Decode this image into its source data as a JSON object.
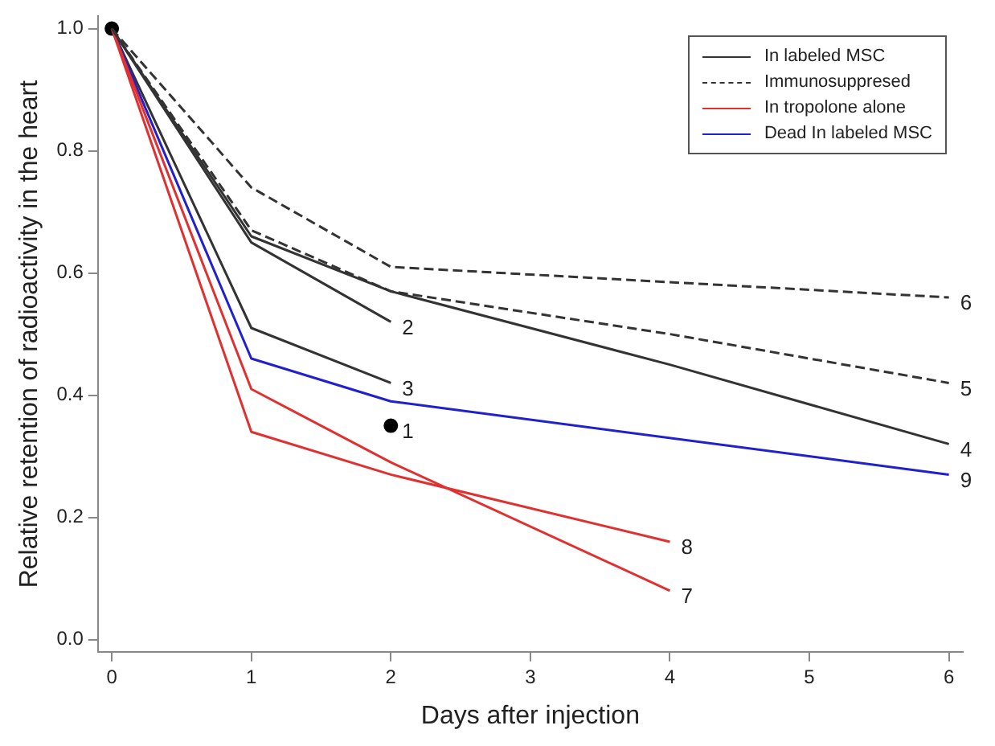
{
  "chart_data": {
    "type": "line",
    "xlabel": "Days after injection",
    "ylabel": "Relative retention of radioactivity in the heart",
    "xlim": [
      -0.1,
      6.1
    ],
    "ylim": [
      -0.02,
      1.02
    ],
    "xticks": [
      0,
      1,
      2,
      3,
      4,
      5,
      6
    ],
    "yticks": [
      {
        "value": 0,
        "label": "0.0"
      },
      {
        "value": 0.2,
        "label": "0.2"
      },
      {
        "value": 0.4,
        "label": "0.4"
      },
      {
        "value": 0.6,
        "label": "0.6"
      },
      {
        "value": 0.8,
        "label": "0.8"
      },
      {
        "value": 1,
        "label": "1.0"
      }
    ],
    "grid": false,
    "legend": "top right",
    "marker": "none",
    "series": [
      {
        "name": "In labeled MSC",
        "color": "#333333",
        "line_style": "solid",
        "x": [
          0,
          1,
          2,
          4,
          6
        ],
        "values": [
          1,
          0.66,
          0.57,
          0.45,
          0.32
        ]
      },
      {
        "name": "Immunosuppresed",
        "color": "#333333",
        "line_style": "dashed",
        "x": [
          0,
          1,
          2,
          4,
          6
        ],
        "values": [
          1,
          0.67,
          0.57,
          0.5,
          0.42
        ]
      },
      {
        "name": "In tropolone alone",
        "color": "#e03030",
        "line_style": "solid",
        "x": [
          0,
          1,
          2,
          4
        ],
        "values": [
          1,
          0.41,
          0.29,
          0.08
        ]
      },
      {
        "name": "Dead In labeled MSC",
        "color": "#2020d0",
        "line_style": "solid",
        "x": [
          0,
          1,
          2,
          6
        ],
        "values": [
          1,
          0.46,
          0.39,
          0.27
        ]
      },
      {
        "color": "#333333",
        "line_style": "solid",
        "x": [
          0,
          1,
          2
        ],
        "values": [
          1,
          0.65,
          0.52
        ]
      },
      {
        "color": "#333333",
        "line_style": "solid",
        "x": [
          0,
          1,
          2
        ],
        "values": [
          1,
          0.51,
          0.42
        ]
      },
      {
        "color": "#333333",
        "line_style": "dashed",
        "x": [
          0,
          1,
          2,
          6
        ],
        "values": [
          1,
          0.74,
          0.61,
          0.56
        ]
      },
      {
        "color": "#e03030",
        "line_style": "solid",
        "x": [
          0,
          1,
          2,
          4
        ],
        "values": [
          1,
          0.34,
          0.27,
          0.16
        ]
      },
      {
        "type": "scatter",
        "color": "#000000",
        "marker": "circle",
        "x": [
          0,
          2
        ],
        "values": [
          1,
          0.35
        ]
      }
    ],
    "annotations": [
      {
        "text": "1",
        "x": 2,
        "y": 0.35
      },
      {
        "text": "2",
        "x": 2,
        "y": 0.52
      },
      {
        "text": "3",
        "x": 2,
        "y": 0.42
      },
      {
        "text": "4",
        "x": 6,
        "y": 0.32
      },
      {
        "text": "5",
        "x": 6,
        "y": 0.42
      },
      {
        "text": "6",
        "x": 6,
        "y": 0.56
      },
      {
        "text": "7",
        "x": 4,
        "y": 0.08
      },
      {
        "text": "8",
        "x": 4,
        "y": 0.16
      },
      {
        "text": "9",
        "x": 6,
        "y": 0.27
      }
    ]
  }
}
